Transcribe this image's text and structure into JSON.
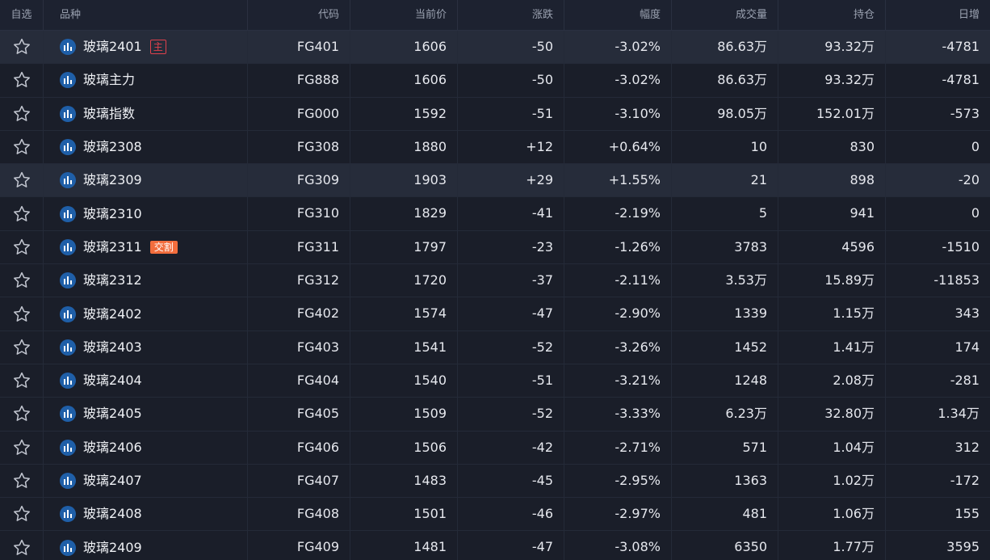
{
  "colors": {
    "up": "#ee4a55",
    "down": "#26b386",
    "background": "#1a1e29",
    "highlight_row": "#262c3a",
    "logo_blue": "#1f5fa8",
    "tag_orange": "#f26d3d"
  },
  "icons": {
    "star": "star-outline-icon",
    "logo": "bar-chart-logo-icon"
  },
  "columns": [
    "自选",
    "品种",
    "代码",
    "当前价",
    "涨跌",
    "幅度",
    "成交量",
    "持仓",
    "日增"
  ],
  "rows": [
    {
      "name": "玻璃2401",
      "tag": "主",
      "tag_style": "outline",
      "code": "FG401",
      "price": "1606",
      "change": "-50",
      "pct": "-3.02%",
      "volume": "86.63万",
      "oi": "93.32万",
      "daily": "-4781",
      "dir": "down",
      "highlight": true
    },
    {
      "name": "玻璃主力",
      "tag": "",
      "tag_style": "",
      "code": "FG888",
      "price": "1606",
      "change": "-50",
      "pct": "-3.02%",
      "volume": "86.63万",
      "oi": "93.32万",
      "daily": "-4781",
      "dir": "down",
      "highlight": false
    },
    {
      "name": "玻璃指数",
      "tag": "",
      "tag_style": "",
      "code": "FG000",
      "price": "1592",
      "change": "-51",
      "pct": "-3.10%",
      "volume": "98.05万",
      "oi": "152.01万",
      "daily": "-573",
      "dir": "down",
      "highlight": false
    },
    {
      "name": "玻璃2308",
      "tag": "",
      "tag_style": "",
      "code": "FG308",
      "price": "1880",
      "change": "+12",
      "pct": "+0.64%",
      "volume": "10",
      "oi": "830",
      "daily": "0",
      "dir": "up",
      "highlight": false
    },
    {
      "name": "玻璃2309",
      "tag": "",
      "tag_style": "",
      "code": "FG309",
      "price": "1903",
      "change": "+29",
      "pct": "+1.55%",
      "volume": "21",
      "oi": "898",
      "daily": "-20",
      "dir": "up",
      "highlight": true
    },
    {
      "name": "玻璃2310",
      "tag": "",
      "tag_style": "",
      "code": "FG310",
      "price": "1829",
      "change": "-41",
      "pct": "-2.19%",
      "volume": "5",
      "oi": "941",
      "daily": "0",
      "dir": "down",
      "highlight": false
    },
    {
      "name": "玻璃2311",
      "tag": "交割",
      "tag_style": "filled",
      "code": "FG311",
      "price": "1797",
      "change": "-23",
      "pct": "-1.26%",
      "volume": "3783",
      "oi": "4596",
      "daily": "-1510",
      "dir": "down",
      "highlight": false
    },
    {
      "name": "玻璃2312",
      "tag": "",
      "tag_style": "",
      "code": "FG312",
      "price": "1720",
      "change": "-37",
      "pct": "-2.11%",
      "volume": "3.53万",
      "oi": "15.89万",
      "daily": "-11853",
      "dir": "down",
      "highlight": false
    },
    {
      "name": "玻璃2402",
      "tag": "",
      "tag_style": "",
      "code": "FG402",
      "price": "1574",
      "change": "-47",
      "pct": "-2.90%",
      "volume": "1339",
      "oi": "1.15万",
      "daily": "343",
      "dir": "down",
      "highlight": false
    },
    {
      "name": "玻璃2403",
      "tag": "",
      "tag_style": "",
      "code": "FG403",
      "price": "1541",
      "change": "-52",
      "pct": "-3.26%",
      "volume": "1452",
      "oi": "1.41万",
      "daily": "174",
      "dir": "down",
      "highlight": false
    },
    {
      "name": "玻璃2404",
      "tag": "",
      "tag_style": "",
      "code": "FG404",
      "price": "1540",
      "change": "-51",
      "pct": "-3.21%",
      "volume": "1248",
      "oi": "2.08万",
      "daily": "-281",
      "dir": "down",
      "highlight": false
    },
    {
      "name": "玻璃2405",
      "tag": "",
      "tag_style": "",
      "code": "FG405",
      "price": "1509",
      "change": "-52",
      "pct": "-3.33%",
      "volume": "6.23万",
      "oi": "32.80万",
      "daily": "1.34万",
      "dir": "down",
      "highlight": false
    },
    {
      "name": "玻璃2406",
      "tag": "",
      "tag_style": "",
      "code": "FG406",
      "price": "1506",
      "change": "-42",
      "pct": "-2.71%",
      "volume": "571",
      "oi": "1.04万",
      "daily": "312",
      "dir": "down",
      "highlight": false
    },
    {
      "name": "玻璃2407",
      "tag": "",
      "tag_style": "",
      "code": "FG407",
      "price": "1483",
      "change": "-45",
      "pct": "-2.95%",
      "volume": "1363",
      "oi": "1.02万",
      "daily": "-172",
      "dir": "down",
      "highlight": false
    },
    {
      "name": "玻璃2408",
      "tag": "",
      "tag_style": "",
      "code": "FG408",
      "price": "1501",
      "change": "-46",
      "pct": "-2.97%",
      "volume": "481",
      "oi": "1.06万",
      "daily": "155",
      "dir": "down",
      "highlight": false
    },
    {
      "name": "玻璃2409",
      "tag": "",
      "tag_style": "",
      "code": "FG409",
      "price": "1481",
      "change": "-47",
      "pct": "-3.08%",
      "volume": "6350",
      "oi": "1.77万",
      "daily": "3595",
      "dir": "down",
      "highlight": false
    }
  ]
}
